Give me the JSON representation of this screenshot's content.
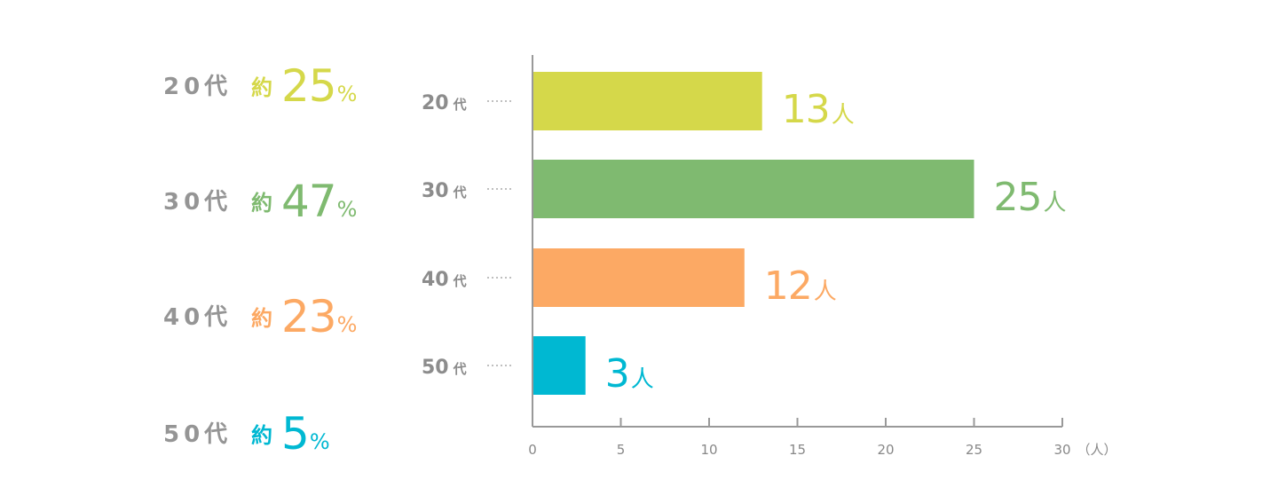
{
  "summary": [
    {
      "label": "20代",
      "prefix": "約",
      "value": "25",
      "unit": "%",
      "color": "#d5d84a"
    },
    {
      "label": "30代",
      "prefix": "約",
      "value": "47",
      "unit": "%",
      "color": "#7fba70"
    },
    {
      "label": "40代",
      "prefix": "約",
      "value": "23",
      "unit": "%",
      "color": "#fca964"
    },
    {
      "label": "50代",
      "prefix": "約",
      "value": "5",
      "unit": "%",
      "color": "#00b8d2"
    }
  ],
  "chart_data": {
    "type": "bar",
    "orientation": "horizontal",
    "categories": [
      "20代",
      "30代",
      "40代",
      "50代"
    ],
    "values": [
      13,
      25,
      12,
      3
    ],
    "value_suffix": "人",
    "colors": [
      "#d5d84a",
      "#7fba70",
      "#fca964",
      "#00b8d2"
    ],
    "x_ticks": [
      0,
      5,
      10,
      15,
      20,
      25,
      30
    ],
    "x_unit": "（人）",
    "xlim": [
      0,
      30
    ],
    "axis_color": "#999999",
    "label_color": "#8c8c8c",
    "grid": false
  }
}
